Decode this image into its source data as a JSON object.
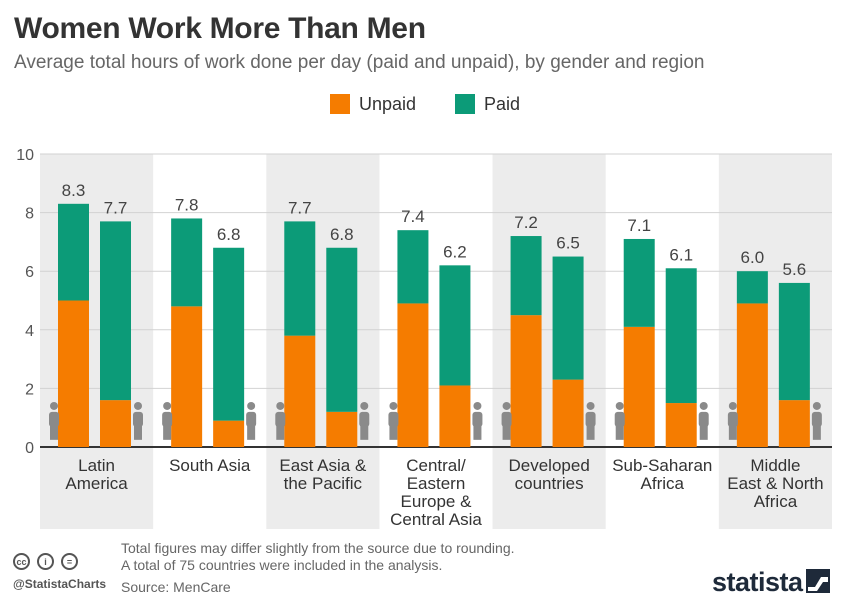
{
  "title": "Women Work More Than Men",
  "subtitle": "Average total hours of work done per day (paid and unpaid), by gender and region",
  "footer": {
    "note1": "Total figures may differ slightly from the source due to rounding.",
    "note2": "A total of 75 countries were included in the analysis.",
    "source": "Source: MenCare",
    "handle": "@StatistaCharts",
    "brand": "statista",
    "license_icons": [
      "cc",
      "i",
      "="
    ]
  },
  "colors": {
    "unpaid": "#f57c00",
    "paid": "#0c9b78",
    "band": "#ececec",
    "person_icon": "#8a8a8a"
  },
  "chart_data": {
    "type": "bar",
    "stacked": true,
    "title": "Women Work More Than Men",
    "subtitle": "Average total hours of work done per day (paid and unpaid), by gender and region",
    "ylim": [
      0,
      10
    ],
    "yticks": [
      0,
      2,
      4,
      6,
      8,
      10
    ],
    "grid": true,
    "legend": {
      "position": "top-center",
      "items": [
        "Unpaid",
        "Paid"
      ]
    },
    "categories": [
      {
        "lines": [
          "Latin",
          "America"
        ]
      },
      {
        "lines": [
          "South Asia"
        ]
      },
      {
        "lines": [
          "East Asia &",
          "the Pacific"
        ]
      },
      {
        "lines": [
          "Central/",
          "Eastern",
          "Europe &",
          "Central Asia"
        ]
      },
      {
        "lines": [
          "Developed",
          "countries"
        ]
      },
      {
        "lines": [
          "Sub-Saharan",
          "Africa"
        ]
      },
      {
        "lines": [
          "Middle",
          "East & North",
          "Africa"
        ]
      }
    ],
    "groups": [
      "women",
      "men"
    ],
    "series": [
      {
        "name": "Unpaid",
        "women": [
          5.0,
          4.8,
          3.8,
          4.9,
          4.5,
          4.1,
          4.9
        ],
        "men": [
          1.6,
          0.9,
          1.2,
          2.1,
          2.3,
          1.5,
          1.6
        ]
      },
      {
        "name": "Paid",
        "women": [
          3.3,
          3.0,
          3.9,
          2.5,
          2.7,
          3.0,
          1.1
        ],
        "men": [
          6.1,
          5.9,
          5.6,
          4.1,
          4.2,
          4.6,
          4.0
        ]
      }
    ],
    "totals": {
      "women": [
        "8.3",
        "7.8",
        "7.7",
        "7.4",
        "7.2",
        "7.1",
        "6.0"
      ],
      "men": [
        "7.7",
        "6.8",
        "6.8",
        "6.2",
        "6.5",
        "6.1",
        "5.6"
      ]
    }
  }
}
